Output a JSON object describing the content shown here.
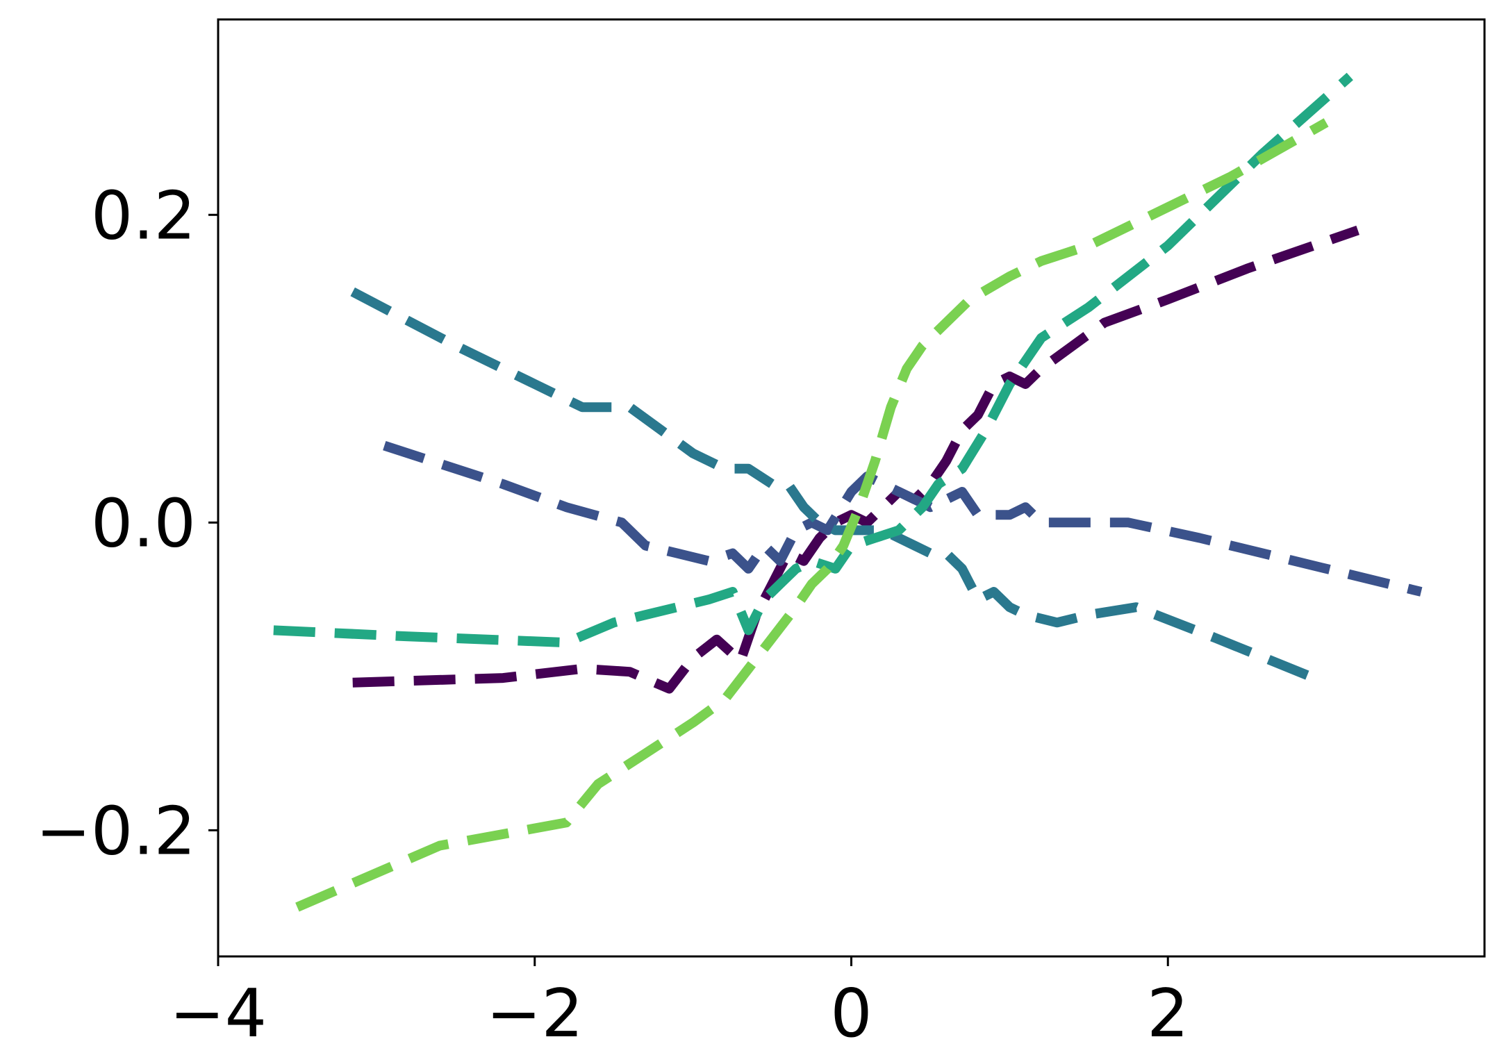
{
  "chart_data": {
    "type": "line",
    "title": "",
    "xlabel": "",
    "ylabel": "",
    "xlim": [
      -4.0,
      4.0
    ],
    "ylim": [
      -0.282,
      0.327
    ],
    "grid": false,
    "legend": "none",
    "x_ticks": [
      {
        "value": -4,
        "label": "−4"
      },
      {
        "value": -2,
        "label": "−2"
      },
      {
        "value": 0,
        "label": "0"
      },
      {
        "value": 2,
        "label": "2"
      }
    ],
    "y_ticks": [
      {
        "value": -0.2,
        "label": "−0.2"
      },
      {
        "value": 0.0,
        "label": "0.0"
      },
      {
        "value": 0.2,
        "label": "0.2"
      }
    ],
    "series": [
      {
        "color": "#440154",
        "x": [
          -3.15,
          -2.2,
          -1.7,
          -1.4,
          -1.15,
          -1.0,
          -0.85,
          -0.7,
          -0.6,
          -0.5,
          -0.4,
          -0.3,
          -0.2,
          -0.1,
          0.0,
          0.1,
          0.2,
          0.3,
          0.4,
          0.5,
          0.6,
          0.7,
          0.8,
          0.9,
          1.0,
          1.1,
          1.2,
          1.4,
          1.6,
          2.0,
          2.5,
          3.2
        ],
        "y": [
          -0.104,
          -0.101,
          -0.095,
          -0.097,
          -0.108,
          -0.088,
          -0.076,
          -0.09,
          -0.06,
          -0.04,
          -0.02,
          -0.025,
          -0.01,
          0.0,
          0.005,
          0.0,
          0.01,
          0.02,
          0.015,
          0.025,
          0.04,
          0.06,
          0.07,
          0.09,
          0.095,
          0.09,
          0.1,
          0.115,
          0.13,
          0.145,
          0.165,
          0.19
        ]
      },
      {
        "color": "#3b528b",
        "x": [
          -2.95,
          -2.2,
          -1.8,
          -1.45,
          -1.3,
          -1.1,
          -0.9,
          -0.75,
          -0.65,
          -0.55,
          -0.45,
          -0.35,
          -0.25,
          -0.15,
          0.0,
          0.1,
          0.2,
          0.3,
          0.4,
          0.5,
          0.6,
          0.7,
          0.8,
          0.9,
          1.0,
          1.1,
          1.2,
          1.4,
          1.75,
          2.2,
          2.8,
          3.6
        ],
        "y": [
          0.05,
          0.025,
          0.01,
          0.0,
          -0.015,
          -0.02,
          -0.025,
          -0.02,
          -0.03,
          -0.015,
          -0.025,
          -0.005,
          0.0,
          -0.005,
          0.02,
          0.03,
          0.025,
          0.02,
          0.015,
          0.01,
          0.015,
          0.02,
          0.005,
          0.005,
          0.005,
          0.01,
          0.0,
          0.0,
          0.0,
          -0.01,
          -0.025,
          -0.045
        ]
      },
      {
        "color": "#2a788e",
        "x": [
          -3.15,
          -2.5,
          -2.0,
          -1.7,
          -1.4,
          -1.2,
          -1.0,
          -0.8,
          -0.65,
          -0.5,
          -0.4,
          -0.3,
          -0.2,
          -0.1,
          0.0,
          0.1,
          0.2,
          0.3,
          0.4,
          0.5,
          0.6,
          0.7,
          0.8,
          0.9,
          1.0,
          1.1,
          1.3,
          1.5,
          1.8,
          2.3,
          2.9
        ],
        "y": [
          0.15,
          0.115,
          0.09,
          0.075,
          0.075,
          0.06,
          0.045,
          0.035,
          0.035,
          0.025,
          0.025,
          0.01,
          0.0,
          -0.005,
          -0.005,
          -0.005,
          -0.005,
          -0.01,
          -0.015,
          -0.02,
          -0.02,
          -0.03,
          -0.05,
          -0.045,
          -0.055,
          -0.06,
          -0.065,
          -0.06,
          -0.055,
          -0.075,
          -0.1
        ]
      },
      {
        "color": "#22a884",
        "x": [
          -3.65,
          -2.8,
          -1.8,
          -1.5,
          -1.3,
          -1.1,
          -0.9,
          -0.75,
          -0.65,
          -0.55,
          -0.45,
          -0.35,
          -0.25,
          -0.1,
          0.0,
          0.15,
          0.3,
          0.45,
          0.55,
          0.7,
          0.85,
          1.0,
          1.2,
          1.5,
          2.0,
          2.6,
          3.15
        ],
        "y": [
          -0.07,
          -0.074,
          -0.078,
          -0.065,
          -0.06,
          -0.055,
          -0.05,
          -0.045,
          -0.07,
          -0.05,
          -0.04,
          -0.03,
          -0.025,
          -0.03,
          -0.015,
          -0.01,
          -0.005,
          0.01,
          0.025,
          0.035,
          0.06,
          0.09,
          0.12,
          0.14,
          0.18,
          0.24,
          0.29
        ]
      },
      {
        "color": "#7ad151",
        "x": [
          -3.5,
          -2.6,
          -1.8,
          -1.6,
          -1.3,
          -1.0,
          -0.8,
          -0.65,
          -0.5,
          -0.35,
          -0.25,
          -0.15,
          -0.05,
          0.05,
          0.15,
          0.25,
          0.35,
          0.45,
          0.55,
          0.75,
          1.0,
          1.2,
          1.5,
          1.9,
          2.4,
          3.0
        ],
        "y": [
          -0.25,
          -0.21,
          -0.195,
          -0.17,
          -0.15,
          -0.13,
          -0.115,
          -0.095,
          -0.075,
          -0.055,
          -0.04,
          -0.03,
          -0.015,
          0.01,
          0.04,
          0.075,
          0.1,
          0.115,
          0.125,
          0.145,
          0.16,
          0.17,
          0.18,
          0.2,
          0.225,
          0.26
        ]
      }
    ]
  }
}
